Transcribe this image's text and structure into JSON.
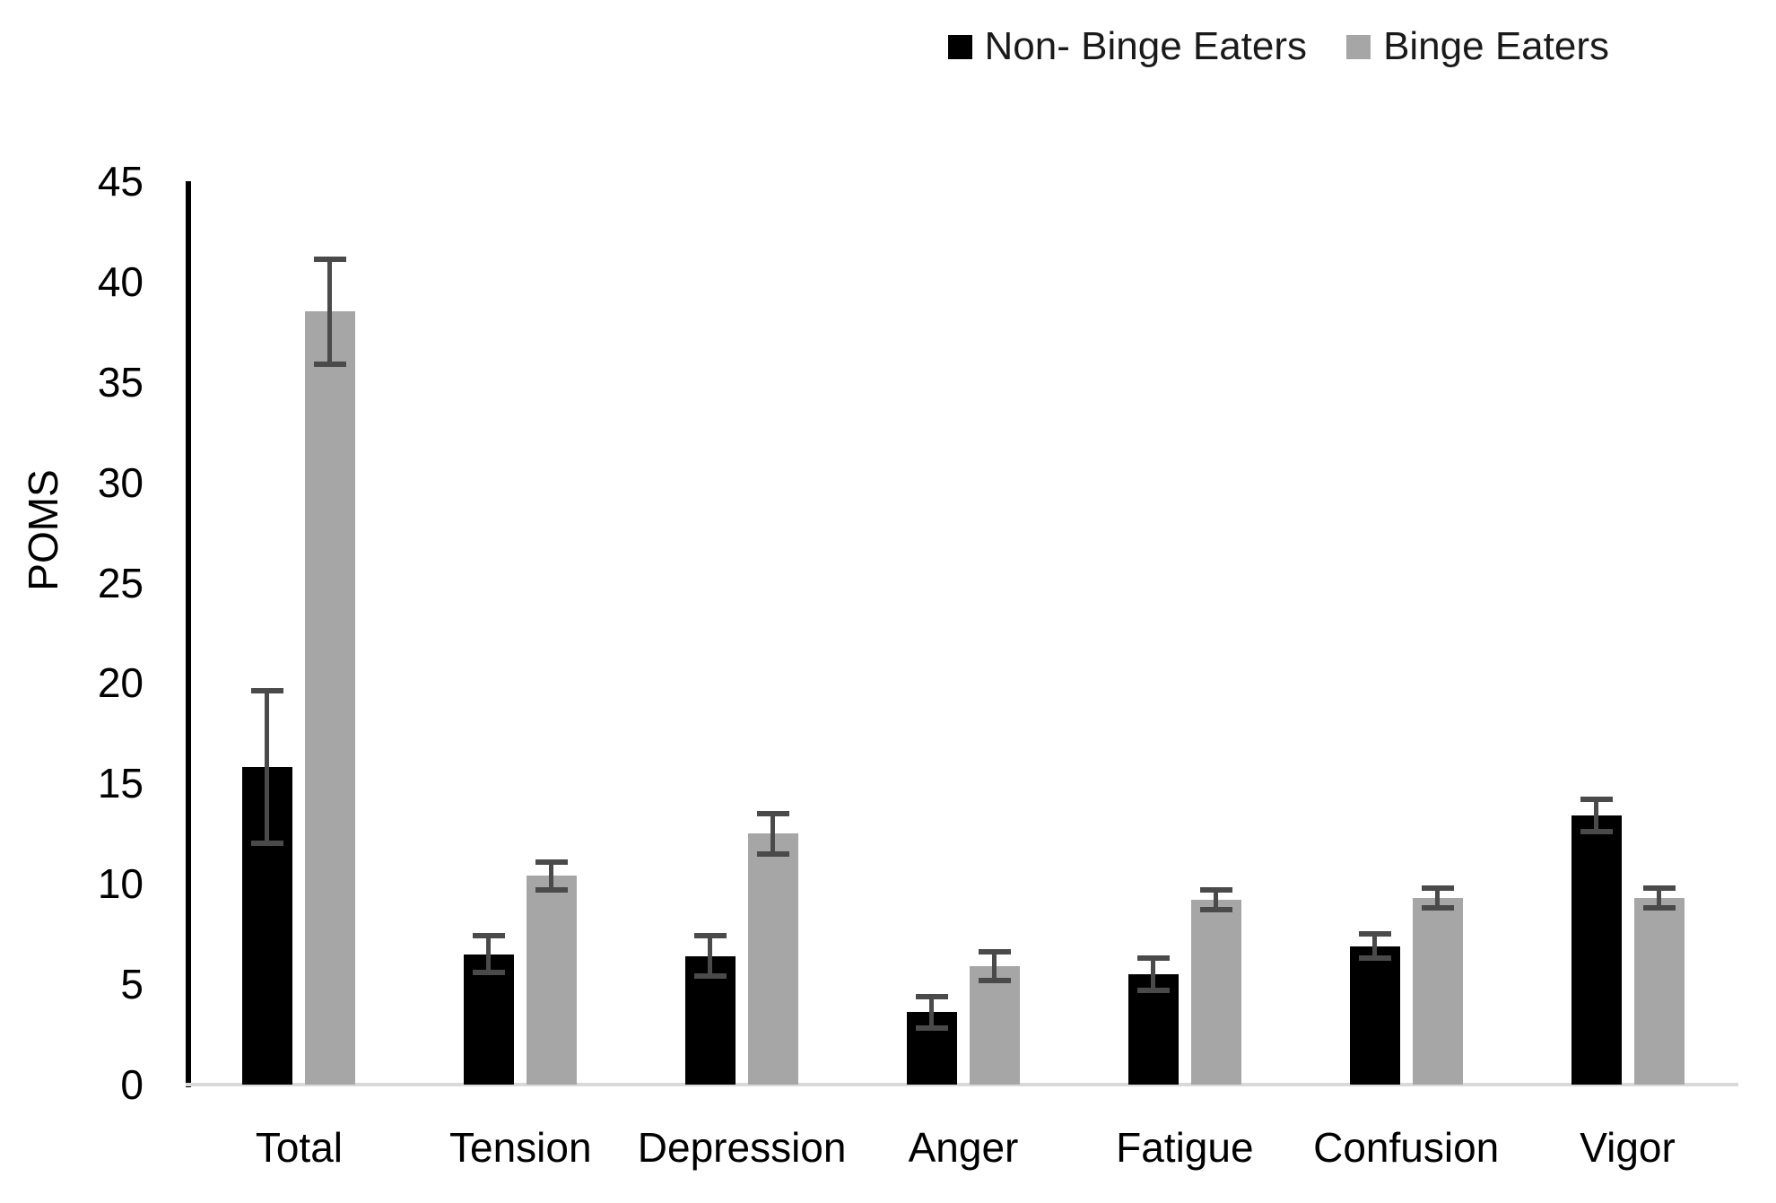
{
  "chart_data": {
    "type": "bar",
    "title": "",
    "xlabel": "",
    "ylabel": "POMS",
    "categories": [
      "Total",
      "Tension",
      "Depression",
      "Anger",
      "Fatigue",
      "Confusion",
      "Vigor"
    ],
    "series": [
      {
        "name": "Non- Binge Eaters",
        "color": "#000000",
        "values": [
          15.8,
          6.5,
          6.4,
          3.6,
          5.5,
          6.9,
          13.4
        ],
        "errors": [
          3.8,
          0.9,
          1.0,
          0.8,
          0.8,
          0.6,
          0.8
        ]
      },
      {
        "name": "Binge Eaters",
        "color": "#a6a6a6",
        "values": [
          38.5,
          10.4,
          12.5,
          5.9,
          9.2,
          9.3,
          9.3
        ],
        "errors": [
          2.6,
          0.7,
          1.0,
          0.7,
          0.5,
          0.5,
          0.5
        ]
      }
    ],
    "ylim": [
      0,
      45
    ],
    "yticks": [
      0,
      5,
      10,
      15,
      20,
      25,
      30,
      35,
      40,
      45
    ],
    "grid": false,
    "legend_position": "top-right",
    "error_bars": true,
    "error_bar_color": "#4a4a4a",
    "axis_line_color": "#000000",
    "baseline_color": "#d9d9d9"
  }
}
